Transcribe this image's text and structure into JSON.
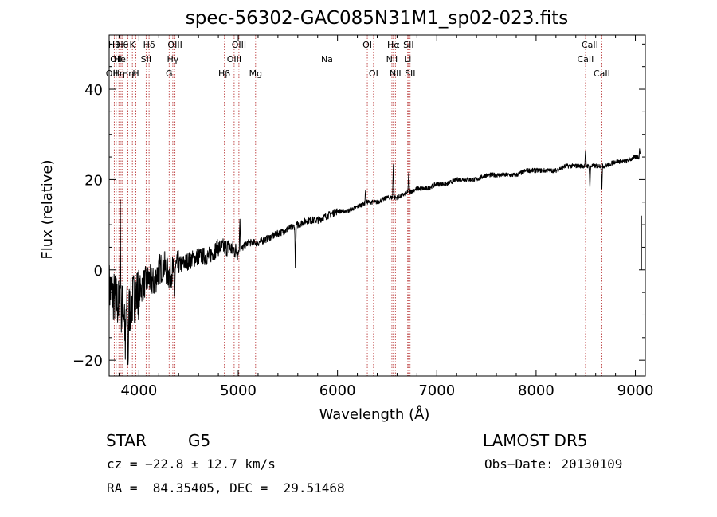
{
  "chart_data": {
    "type": "line",
    "title": "spec-56302-GAC085N31M1_sp02-023.fits",
    "xlabel": "Wavelength (Å)",
    "ylabel": "Flux (relative)",
    "xlim": [
      3700,
      9100
    ],
    "ylim": [
      -23.5,
      52
    ],
    "x_ticks": [
      4000,
      5000,
      6000,
      7000,
      8000,
      9000
    ],
    "x_tick_labels": [
      "4000",
      "5000",
      "6000",
      "7000",
      "8000",
      "9000"
    ],
    "y_ticks": [
      -20,
      0,
      20,
      40
    ],
    "y_tick_labels": [
      "−20",
      "0",
      "20",
      "40"
    ],
    "grid": false,
    "line_color": "#000000",
    "marker_color": "#b22222",
    "spectrum": {
      "x": [
        3700,
        3750,
        3800,
        3850,
        3900,
        3950,
        4000,
        4050,
        4100,
        4150,
        4200,
        4250,
        4300,
        4350,
        4400,
        4500,
        4600,
        4700,
        4800,
        4900,
        5000,
        5100,
        5200,
        5300,
        5400,
        5500,
        5600,
        5700,
        5800,
        5900,
        6000,
        6100,
        6200,
        6300,
        6400,
        6500,
        6600,
        6700,
        6800,
        6900,
        7000,
        7100,
        7200,
        7300,
        7400,
        7500,
        7600,
        7700,
        7800,
        7900,
        8000,
        8100,
        8200,
        8300,
        8400,
        8500,
        8600,
        8700,
        8800,
        8900,
        9000,
        9050
      ],
      "y": [
        -4,
        -6,
        -8,
        -9,
        -9,
        -6,
        -5,
        -3,
        -2,
        -3,
        0,
        1,
        -1,
        0,
        1,
        2,
        3,
        3,
        5,
        5,
        4,
        6,
        6,
        7,
        8,
        9,
        10,
        11,
        11,
        12,
        13,
        13,
        14,
        15,
        15,
        16,
        16,
        17,
        18,
        18,
        19,
        19,
        20,
        20,
        20,
        21,
        21,
        21,
        21,
        22,
        22,
        22,
        22,
        23,
        23,
        23,
        23,
        23,
        24,
        24,
        25,
        25
      ],
      "features": [
        {
          "x": 3812,
          "y": 17
        },
        {
          "x": 3863,
          "y": -20
        },
        {
          "x": 3890,
          "y": -22
        },
        {
          "x": 4357,
          "y": -7
        },
        {
          "x": 5017,
          "y": 12
        },
        {
          "x": 5576,
          "y": 0
        },
        {
          "x": 6283,
          "y": 18
        },
        {
          "x": 6563,
          "y": 24
        },
        {
          "x": 6717,
          "y": 22
        },
        {
          "x": 8498,
          "y": 26
        },
        {
          "x": 8542,
          "y": 18
        },
        {
          "x": 8662,
          "y": 18
        },
        {
          "x": 9044,
          "y": 27
        },
        {
          "x": 9060,
          "y": 0
        }
      ]
    },
    "line_markers": [
      {
        "x": 3727,
        "label": "OII",
        "row": 2
      },
      {
        "x": 3751,
        "label": "Hθ",
        "row": 0
      },
      {
        "x": 3771,
        "label": "OII",
        "row": 1
      },
      {
        "x": 3798,
        "label": "Hη",
        "row": 2
      },
      {
        "x": 3820,
        "label": "HeI",
        "row": 1
      },
      {
        "x": 3835,
        "label": "Hθ",
        "row": 0
      },
      {
        "x": 3889,
        "label": "Hη",
        "row": 2
      },
      {
        "x": 3934,
        "label": "K",
        "row": 0
      },
      {
        "x": 3969,
        "label": "H",
        "row": 2
      },
      {
        "x": 4072,
        "label": "SII",
        "row": 1
      },
      {
        "x": 4102,
        "label": "Hδ",
        "row": 0
      },
      {
        "x": 4304,
        "label": "G",
        "row": 2
      },
      {
        "x": 4341,
        "label": "Hγ",
        "row": 1
      },
      {
        "x": 4363,
        "label": "OIII",
        "row": 0
      },
      {
        "x": 4861,
        "label": "Hβ",
        "row": 2
      },
      {
        "x": 4959,
        "label": "OIII",
        "row": 1
      },
      {
        "x": 5007,
        "label": "OIII",
        "row": 0
      },
      {
        "x": 5175,
        "label": "Mg",
        "row": 2
      },
      {
        "x": 5894,
        "label": "Na",
        "row": 1
      },
      {
        "x": 6300,
        "label": "OI",
        "row": 0
      },
      {
        "x": 6363,
        "label": "OI",
        "row": 2
      },
      {
        "x": 6548,
        "label": "NII",
        "row": 1
      },
      {
        "x": 6563,
        "label": "Hα",
        "row": 0
      },
      {
        "x": 6583,
        "label": "NII",
        "row": 2
      },
      {
        "x": 6707,
        "label": "Li",
        "row": 1
      },
      {
        "x": 6716,
        "label": "SII",
        "row": 0
      },
      {
        "x": 6731,
        "label": "SII",
        "row": 2
      },
      {
        "x": 8498,
        "label": "CaII",
        "row": 1
      },
      {
        "x": 8542,
        "label": "CaII",
        "row": 0
      },
      {
        "x": 8662,
        "label": "CaII",
        "row": 2
      }
    ]
  },
  "info": {
    "object_class": "STAR",
    "subclass": "G5",
    "survey": "LAMOST DR5",
    "cz": "cz = −22.8 ± 12.7 km/s",
    "obs_date": "Obs−Date: 20130109",
    "coords": "RA =  84.35405, DEC =  29.51468"
  }
}
